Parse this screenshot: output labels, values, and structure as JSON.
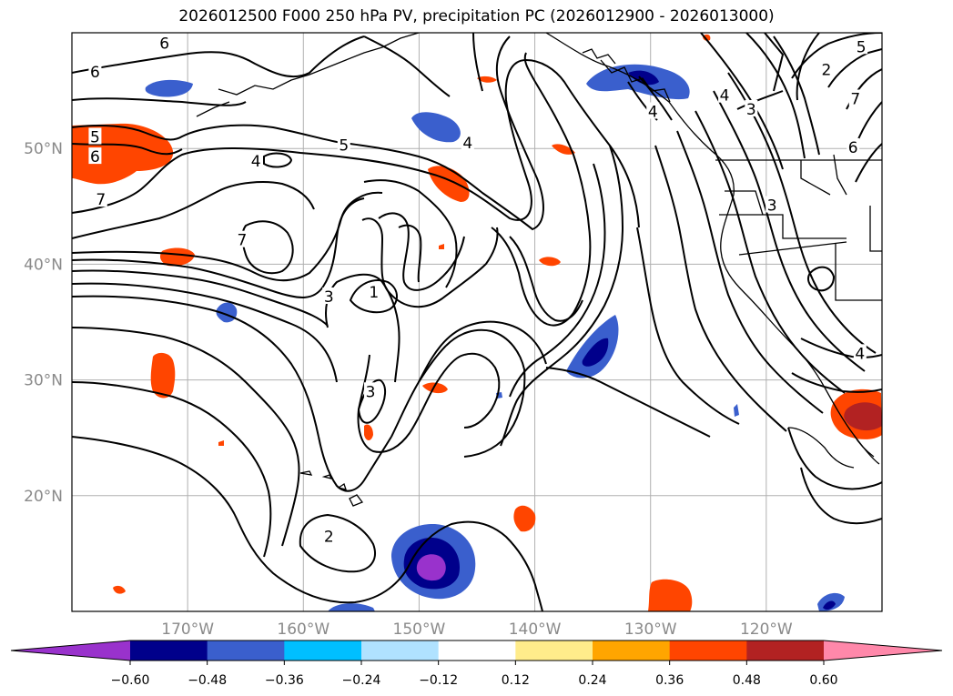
{
  "title": "2026012500 F000 250 hPa PV, precipitation PC (2026012900 - 2026013000)",
  "map": {
    "projection": "lat-lon",
    "extent": {
      "lon_min": -180,
      "lon_max": -110,
      "lat_min": 10,
      "lat_max": 60
    },
    "lat_ticks": [
      {
        "value": 50,
        "label": "50°N"
      },
      {
        "value": 40,
        "label": "40°N"
      },
      {
        "value": 30,
        "label": "30°N"
      },
      {
        "value": 20,
        "label": "20°N"
      }
    ],
    "lon_ticks": [
      {
        "value": -170,
        "label": "170°W"
      },
      {
        "value": -160,
        "label": "160°W"
      },
      {
        "value": -150,
        "label": "150°W"
      },
      {
        "value": -140,
        "label": "140°W"
      },
      {
        "value": -130,
        "label": "130°W"
      },
      {
        "value": -120,
        "label": "120°W"
      }
    ],
    "contour_labels": [
      {
        "text": "6",
        "lon": -178.0,
        "lat": 56.6
      },
      {
        "text": "5",
        "lon": -178.0,
        "lat": 51.0
      },
      {
        "text": "6",
        "lon": -178.0,
        "lat": 49.3
      },
      {
        "text": "7",
        "lon": -177.5,
        "lat": 45.6
      },
      {
        "text": "6",
        "lon": -172.0,
        "lat": 59.1
      },
      {
        "text": "4",
        "lon": -164.1,
        "lat": 48.9
      },
      {
        "text": "5",
        "lon": -156.5,
        "lat": 50.3
      },
      {
        "text": "7",
        "lon": -165.3,
        "lat": 42.1
      },
      {
        "text": "3",
        "lon": -157.8,
        "lat": 37.2
      },
      {
        "text": "1",
        "lon": -153.9,
        "lat": 37.6
      },
      {
        "text": "3",
        "lon": -154.2,
        "lat": 29.0
      },
      {
        "text": "2",
        "lon": -157.8,
        "lat": 16.5
      },
      {
        "text": "4",
        "lon": -145.8,
        "lat": 50.5
      },
      {
        "text": "2",
        "lon": -114.8,
        "lat": 56.8
      },
      {
        "text": "4",
        "lon": -123.6,
        "lat": 54.6
      },
      {
        "text": "3",
        "lon": -121.3,
        "lat": 53.4
      },
      {
        "text": "5",
        "lon": -111.8,
        "lat": 58.8
      },
      {
        "text": "7",
        "lon": -112.3,
        "lat": 54.3
      },
      {
        "text": "6",
        "lon": -112.5,
        "lat": 50.1
      },
      {
        "text": "3",
        "lon": -119.5,
        "lat": 45.1
      },
      {
        "text": "4",
        "lon": -111.9,
        "lat": 32.3
      },
      {
        "text": "4",
        "lon": -129.8,
        "lat": 53.2
      }
    ]
  },
  "colorbar": {
    "colors": [
      "#9932cc",
      "#00008b",
      "#3a5fcd",
      "#00bfff",
      "#b0e2ff",
      "#ffffff",
      "#ffec8b",
      "#ffa500",
      "#ff4500",
      "#b22222",
      "#ff88aa"
    ],
    "tick_labels": [
      "−0.60",
      "−0.48",
      "−0.36",
      "−0.24",
      "−0.12",
      "0.12",
      "0.24",
      "0.36",
      "0.48",
      "0.60"
    ],
    "ticks": [
      -0.6,
      -0.48,
      -0.36,
      -0.24,
      -0.12,
      0.12,
      0.24,
      0.36,
      0.48,
      0.6
    ],
    "extend": "both"
  },
  "colors": {
    "grid": "#b0b0b0",
    "contour": "#000000",
    "coast": "#000000"
  }
}
